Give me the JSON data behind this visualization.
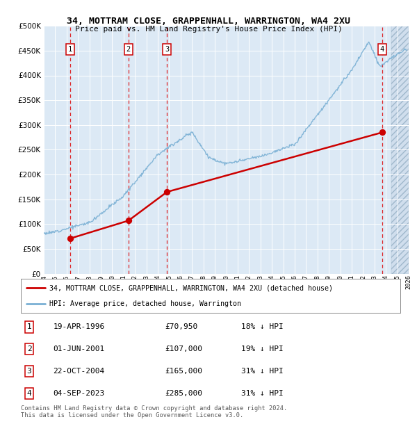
{
  "title": "34, MOTTRAM CLOSE, GRAPPENHALL, WARRINGTON, WA4 2XU",
  "subtitle": "Price paid vs. HM Land Registry's House Price Index (HPI)",
  "sales": [
    {
      "date_str": "19-APR-1996",
      "date_num": 1996.3,
      "price": 70950,
      "label": "1"
    },
    {
      "date_str": "01-JUN-2001",
      "date_num": 2001.42,
      "price": 107000,
      "label": "2"
    },
    {
      "date_str": "22-OCT-2004",
      "date_num": 2004.81,
      "price": 165000,
      "label": "3"
    },
    {
      "date_str": "04-SEP-2023",
      "date_num": 2023.67,
      "price": 285000,
      "label": "4"
    }
  ],
  "sale_notes": [
    {
      "label": "1",
      "date": "19-APR-1996",
      "price": "£70,950",
      "note": "18% ↓ HPI"
    },
    {
      "label": "2",
      "date": "01-JUN-2001",
      "price": "£107,000",
      "note": "19% ↓ HPI"
    },
    {
      "label": "3",
      "date": "22-OCT-2004",
      "price": "£165,000",
      "note": "31% ↓ HPI"
    },
    {
      "label": "4",
      "date": "04-SEP-2023",
      "price": "£285,000",
      "note": "31% ↓ HPI"
    }
  ],
  "hpi_color": "#7ab0d4",
  "sale_color": "#cc0000",
  "bg_color": "#dce9f5",
  "xmin": 1994,
  "xmax": 2026,
  "ymin": 0,
  "ymax": 500000,
  "yticks": [
    0,
    50000,
    100000,
    150000,
    200000,
    250000,
    300000,
    350000,
    400000,
    450000,
    500000
  ],
  "xticks": [
    1994,
    1995,
    1996,
    1997,
    1998,
    1999,
    2000,
    2001,
    2002,
    2003,
    2004,
    2005,
    2006,
    2007,
    2008,
    2009,
    2010,
    2011,
    2012,
    2013,
    2014,
    2015,
    2016,
    2017,
    2018,
    2019,
    2020,
    2021,
    2022,
    2023,
    2024,
    2025,
    2026
  ],
  "footer": "Contains HM Land Registry data © Crown copyright and database right 2024.\nThis data is licensed under the Open Government Licence v3.0.",
  "legend_sale_label": "34, MOTTRAM CLOSE, GRAPPENHALL, WARRINGTON, WA4 2XU (detached house)",
  "legend_hpi_label": "HPI: Average price, detached house, Warrington",
  "hatch_start": 2024.5
}
